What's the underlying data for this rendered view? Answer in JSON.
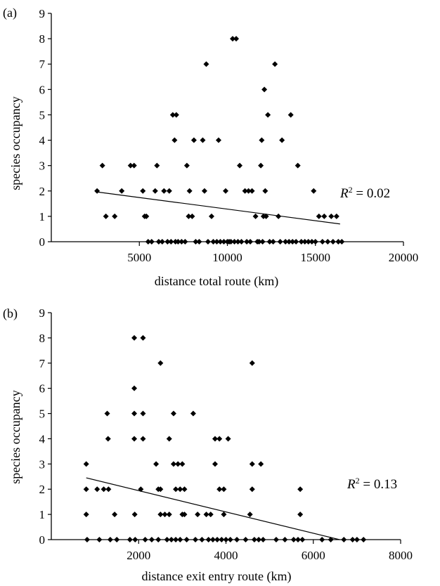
{
  "chart_data": [
    {
      "type": "scatter",
      "panel_label": "(a)",
      "xlabel": "distance total route (km)",
      "ylabel": "species occupancy",
      "xlim": [
        0,
        20000
      ],
      "ylim": [
        0,
        9
      ],
      "x_ticks": [
        5000,
        10000,
        15000,
        20000
      ],
      "x_tick_labels": [
        "5000",
        "10000",
        "15000",
        "20000"
      ],
      "y_ticks": [
        0,
        1,
        2,
        3,
        4,
        5,
        6,
        7,
        8,
        9
      ],
      "y_tick_labels": [
        "0",
        "1",
        "2",
        "3",
        "4",
        "5",
        "6",
        "7",
        "8",
        "9"
      ],
      "grid": false,
      "annotation": {
        "symbol": "R",
        "sup": "2",
        "text": " = 0.02"
      },
      "trendline": {
        "x": [
          2500,
          16400
        ],
        "y": [
          1.97,
          0.7
        ]
      },
      "points": [
        {
          "x": 2600,
          "y": 2
        },
        {
          "x": 2900,
          "y": 3
        },
        {
          "x": 3100,
          "y": 1
        },
        {
          "x": 3600,
          "y": 1
        },
        {
          "x": 4000,
          "y": 2
        },
        {
          "x": 4500,
          "y": 3
        },
        {
          "x": 4700,
          "y": 3
        },
        {
          "x": 5200,
          "y": 2
        },
        {
          "x": 5300,
          "y": 1
        },
        {
          "x": 5400,
          "y": 1
        },
        {
          "x": 5500,
          "y": 0
        },
        {
          "x": 5700,
          "y": 0
        },
        {
          "x": 5900,
          "y": 2
        },
        {
          "x": 6000,
          "y": 3
        },
        {
          "x": 6100,
          "y": 0
        },
        {
          "x": 6300,
          "y": 0
        },
        {
          "x": 6400,
          "y": 2
        },
        {
          "x": 6600,
          "y": 0
        },
        {
          "x": 6700,
          "y": 2
        },
        {
          "x": 6800,
          "y": 0
        },
        {
          "x": 6900,
          "y": 5
        },
        {
          "x": 7000,
          "y": 4
        },
        {
          "x": 7050,
          "y": 0
        },
        {
          "x": 7100,
          "y": 5
        },
        {
          "x": 7200,
          "y": 0
        },
        {
          "x": 7400,
          "y": 0
        },
        {
          "x": 7600,
          "y": 0
        },
        {
          "x": 7700,
          "y": 3
        },
        {
          "x": 7800,
          "y": 1
        },
        {
          "x": 7850,
          "y": 2
        },
        {
          "x": 8000,
          "y": 1
        },
        {
          "x": 8100,
          "y": 4
        },
        {
          "x": 8200,
          "y": 0
        },
        {
          "x": 8400,
          "y": 0
        },
        {
          "x": 8600,
          "y": 4
        },
        {
          "x": 8700,
          "y": 2
        },
        {
          "x": 8800,
          "y": 7
        },
        {
          "x": 8900,
          "y": 0
        },
        {
          "x": 9100,
          "y": 1
        },
        {
          "x": 9200,
          "y": 0
        },
        {
          "x": 9400,
          "y": 0
        },
        {
          "x": 9500,
          "y": 4
        },
        {
          "x": 9600,
          "y": 0
        },
        {
          "x": 9800,
          "y": 0
        },
        {
          "x": 9900,
          "y": 2
        },
        {
          "x": 10000,
          "y": 0
        },
        {
          "x": 10100,
          "y": 0
        },
        {
          "x": 10200,
          "y": 0
        },
        {
          "x": 10300,
          "y": 8
        },
        {
          "x": 10400,
          "y": 0
        },
        {
          "x": 10500,
          "y": 8
        },
        {
          "x": 10600,
          "y": 0
        },
        {
          "x": 10700,
          "y": 3
        },
        {
          "x": 10800,
          "y": 0
        },
        {
          "x": 11000,
          "y": 2
        },
        {
          "x": 11100,
          "y": 0
        },
        {
          "x": 11200,
          "y": 2
        },
        {
          "x": 11300,
          "y": 0
        },
        {
          "x": 11400,
          "y": 2
        },
        {
          "x": 11600,
          "y": 1
        },
        {
          "x": 11700,
          "y": 0
        },
        {
          "x": 11800,
          "y": 0
        },
        {
          "x": 11900,
          "y": 3
        },
        {
          "x": 11950,
          "y": 4
        },
        {
          "x": 12000,
          "y": 0
        },
        {
          "x": 12050,
          "y": 1
        },
        {
          "x": 12100,
          "y": 6
        },
        {
          "x": 12150,
          "y": 2
        },
        {
          "x": 12200,
          "y": 1
        },
        {
          "x": 12300,
          "y": 5
        },
        {
          "x": 12400,
          "y": 0
        },
        {
          "x": 12600,
          "y": 0
        },
        {
          "x": 12700,
          "y": 7
        },
        {
          "x": 12900,
          "y": 1
        },
        {
          "x": 13000,
          "y": 0
        },
        {
          "x": 13100,
          "y": 4
        },
        {
          "x": 13300,
          "y": 0
        },
        {
          "x": 13500,
          "y": 0
        },
        {
          "x": 13600,
          "y": 5
        },
        {
          "x": 13700,
          "y": 0
        },
        {
          "x": 13900,
          "y": 0
        },
        {
          "x": 14000,
          "y": 3
        },
        {
          "x": 14200,
          "y": 0
        },
        {
          "x": 14400,
          "y": 0
        },
        {
          "x": 14600,
          "y": 0
        },
        {
          "x": 14800,
          "y": 0
        },
        {
          "x": 14900,
          "y": 2
        },
        {
          "x": 15000,
          "y": 0
        },
        {
          "x": 15200,
          "y": 1
        },
        {
          "x": 15400,
          "y": 0
        },
        {
          "x": 15500,
          "y": 1
        },
        {
          "x": 15700,
          "y": 0
        },
        {
          "x": 15900,
          "y": 1
        },
        {
          "x": 16000,
          "y": 0
        },
        {
          "x": 16200,
          "y": 1
        },
        {
          "x": 16300,
          "y": 0
        },
        {
          "x": 16500,
          "y": 0
        }
      ]
    },
    {
      "type": "scatter",
      "panel_label": "(b)",
      "xlabel": "distance exit entry route (km)",
      "ylabel": "species occupancy",
      "xlim": [
        0,
        8000
      ],
      "ylim": [
        0,
        9
      ],
      "x_ticks": [
        2000,
        4000,
        6000,
        8000
      ],
      "x_tick_labels": [
        "2000",
        "4000",
        "6000",
        "8000"
      ],
      "y_ticks": [
        0,
        1,
        2,
        3,
        4,
        5,
        6,
        7,
        8,
        9
      ],
      "y_tick_labels": [
        "0",
        "1",
        "2",
        "3",
        "4",
        "5",
        "6",
        "7",
        "8",
        "9"
      ],
      "grid": false,
      "annotation": {
        "symbol": "R",
        "sup": "2",
        "text": " = 0.13"
      },
      "trendline": {
        "x": [
          800,
          6600
        ],
        "y": [
          2.45,
          0
        ]
      },
      "points": [
        {
          "x": 800,
          "y": 3
        },
        {
          "x": 800,
          "y": 2
        },
        {
          "x": 800,
          "y": 1
        },
        {
          "x": 820,
          "y": 0
        },
        {
          "x": 1050,
          "y": 2
        },
        {
          "x": 1100,
          "y": 0
        },
        {
          "x": 1200,
          "y": 2
        },
        {
          "x": 1280,
          "y": 5
        },
        {
          "x": 1300,
          "y": 4
        },
        {
          "x": 1310,
          "y": 2
        },
        {
          "x": 1350,
          "y": 0
        },
        {
          "x": 1450,
          "y": 1
        },
        {
          "x": 1500,
          "y": 0
        },
        {
          "x": 1800,
          "y": 0
        },
        {
          "x": 1900,
          "y": 8
        },
        {
          "x": 1900,
          "y": 6
        },
        {
          "x": 1900,
          "y": 5
        },
        {
          "x": 1900,
          "y": 4
        },
        {
          "x": 1910,
          "y": 1
        },
        {
          "x": 1920,
          "y": 0
        },
        {
          "x": 2050,
          "y": 2
        },
        {
          "x": 2100,
          "y": 8
        },
        {
          "x": 2100,
          "y": 5
        },
        {
          "x": 2100,
          "y": 4
        },
        {
          "x": 2150,
          "y": 0
        },
        {
          "x": 2300,
          "y": 0
        },
        {
          "x": 2400,
          "y": 3
        },
        {
          "x": 2450,
          "y": 2
        },
        {
          "x": 2450,
          "y": 0
        },
        {
          "x": 2500,
          "y": 7
        },
        {
          "x": 2500,
          "y": 2
        },
        {
          "x": 2500,
          "y": 1
        },
        {
          "x": 2600,
          "y": 1
        },
        {
          "x": 2650,
          "y": 0
        },
        {
          "x": 2700,
          "y": 1
        },
        {
          "x": 2700,
          "y": 4
        },
        {
          "x": 2750,
          "y": 0
        },
        {
          "x": 2800,
          "y": 5
        },
        {
          "x": 2800,
          "y": 3
        },
        {
          "x": 2850,
          "y": 0
        },
        {
          "x": 2850,
          "y": 2
        },
        {
          "x": 2900,
          "y": 3
        },
        {
          "x": 2950,
          "y": 2
        },
        {
          "x": 2950,
          "y": 0
        },
        {
          "x": 3000,
          "y": 3
        },
        {
          "x": 3000,
          "y": 1
        },
        {
          "x": 3050,
          "y": 2
        },
        {
          "x": 3050,
          "y": 1
        },
        {
          "x": 3100,
          "y": 0
        },
        {
          "x": 3250,
          "y": 5
        },
        {
          "x": 3300,
          "y": 0
        },
        {
          "x": 3350,
          "y": 1
        },
        {
          "x": 3450,
          "y": 0
        },
        {
          "x": 3550,
          "y": 1
        },
        {
          "x": 3600,
          "y": 0
        },
        {
          "x": 3650,
          "y": 1
        },
        {
          "x": 3700,
          "y": 0
        },
        {
          "x": 3750,
          "y": 4
        },
        {
          "x": 3750,
          "y": 3
        },
        {
          "x": 3800,
          "y": 0
        },
        {
          "x": 3850,
          "y": 4
        },
        {
          "x": 3850,
          "y": 2
        },
        {
          "x": 3900,
          "y": 0
        },
        {
          "x": 3950,
          "y": 2
        },
        {
          "x": 3950,
          "y": 1
        },
        {
          "x": 4000,
          "y": 0
        },
        {
          "x": 4050,
          "y": 4
        },
        {
          "x": 4100,
          "y": 0
        },
        {
          "x": 4250,
          "y": 0
        },
        {
          "x": 4450,
          "y": 0
        },
        {
          "x": 4550,
          "y": 1
        },
        {
          "x": 4600,
          "y": 7
        },
        {
          "x": 4600,
          "y": 3
        },
        {
          "x": 4600,
          "y": 2
        },
        {
          "x": 4650,
          "y": 0
        },
        {
          "x": 4750,
          "y": 0
        },
        {
          "x": 4800,
          "y": 3
        },
        {
          "x": 4850,
          "y": 0
        },
        {
          "x": 5150,
          "y": 0
        },
        {
          "x": 5350,
          "y": 0
        },
        {
          "x": 5550,
          "y": 0
        },
        {
          "x": 5650,
          "y": 0
        },
        {
          "x": 5700,
          "y": 2
        },
        {
          "x": 5700,
          "y": 1
        },
        {
          "x": 5750,
          "y": 0
        },
        {
          "x": 6200,
          "y": 0
        },
        {
          "x": 6400,
          "y": 0
        },
        {
          "x": 6700,
          "y": 0
        },
        {
          "x": 6900,
          "y": 0
        },
        {
          "x": 7000,
          "y": 0
        },
        {
          "x": 7150,
          "y": 0
        }
      ]
    }
  ]
}
